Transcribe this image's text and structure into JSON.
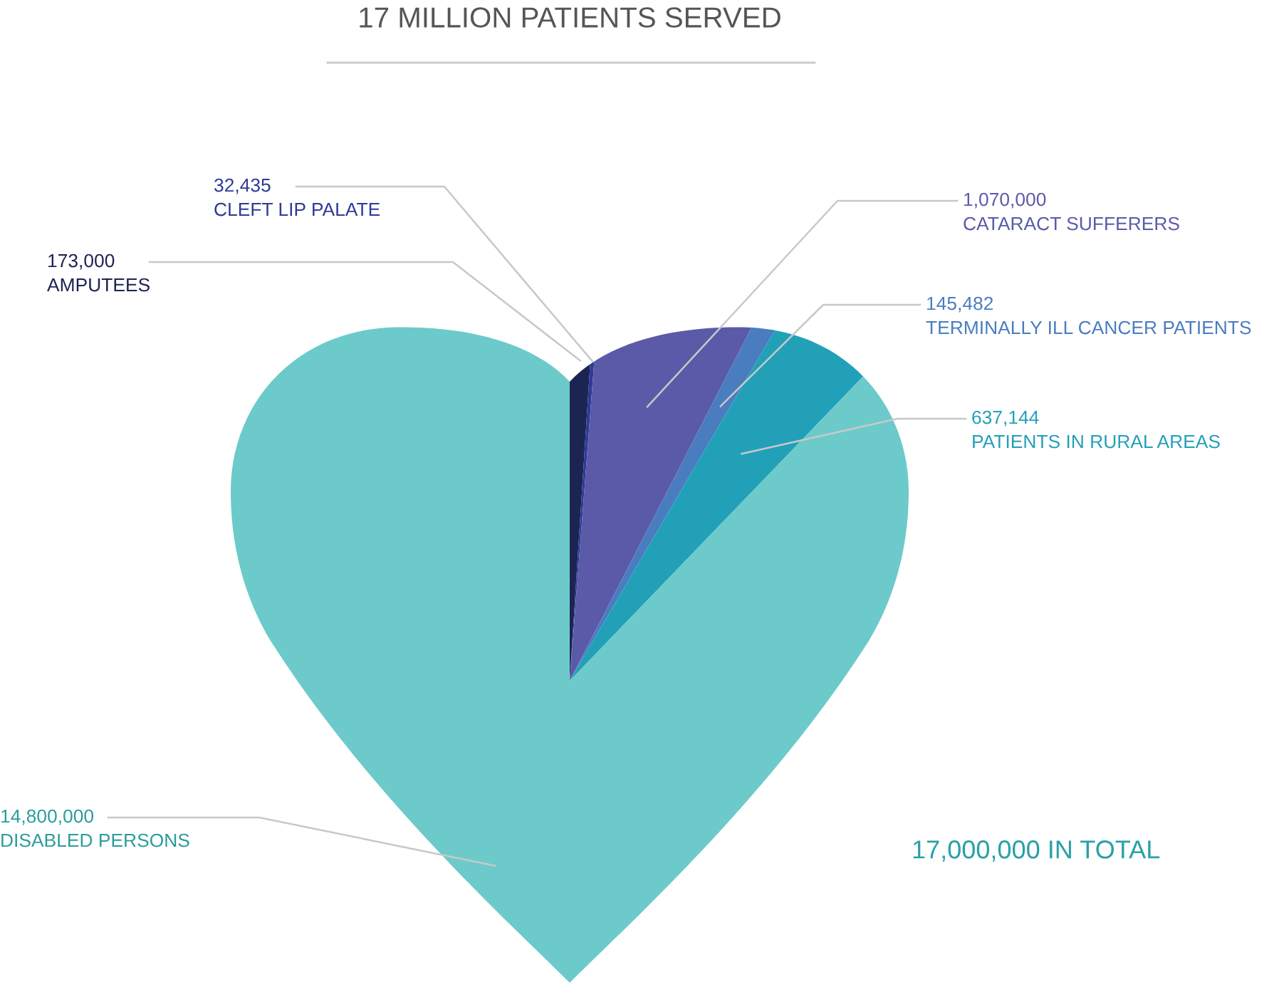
{
  "chart_data": {
    "type": "pie",
    "title": "17 MILLION PATIENTS SERVED",
    "categories": [
      "AMPUTEES",
      "CLEFT LIP PALATE",
      "CATARACT SUFFERERS",
      "TERMINALLY ILL CANCER PATIENTS",
      "PATIENTS IN RURAL AREAS",
      "DISABLED PERSONS"
    ],
    "values": [
      173000,
      32435,
      1070000,
      145482,
      637144,
      14800000
    ],
    "colors": [
      "#1c2452",
      "#2e3a96",
      "#5a5aa8",
      "#4a7cc0",
      "#22a0b8",
      "#6ccaca"
    ],
    "value_labels": [
      "173,000",
      "32,435",
      "1,070,000",
      "145,482",
      "637,144",
      "14,800,000"
    ],
    "annotations": [
      "17,000,000 IN TOTAL"
    ]
  }
}
